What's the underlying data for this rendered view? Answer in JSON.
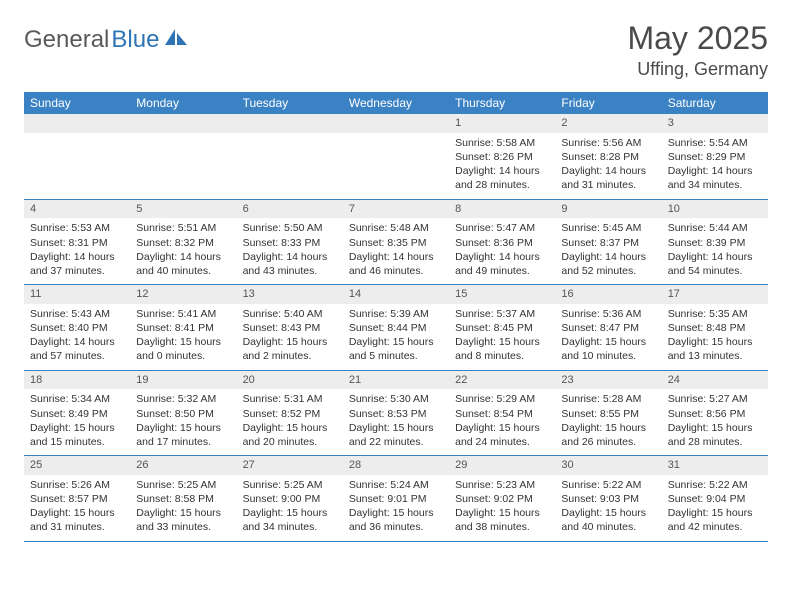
{
  "brand": {
    "part1": "General",
    "part2": "Blue"
  },
  "title": "May 2025",
  "location": "Uffing, Germany",
  "colors": {
    "header_bg": "#3b82c4",
    "daynum_bg": "#ededed",
    "border": "#3b82c4"
  },
  "weekdays": [
    "Sunday",
    "Monday",
    "Tuesday",
    "Wednesday",
    "Thursday",
    "Friday",
    "Saturday"
  ],
  "weeks": [
    [
      null,
      null,
      null,
      null,
      {
        "n": "1",
        "sunrise": "Sunrise: 5:58 AM",
        "sunset": "Sunset: 8:26 PM",
        "daylight": "Daylight: 14 hours and 28 minutes."
      },
      {
        "n": "2",
        "sunrise": "Sunrise: 5:56 AM",
        "sunset": "Sunset: 8:28 PM",
        "daylight": "Daylight: 14 hours and 31 minutes."
      },
      {
        "n": "3",
        "sunrise": "Sunrise: 5:54 AM",
        "sunset": "Sunset: 8:29 PM",
        "daylight": "Daylight: 14 hours and 34 minutes."
      }
    ],
    [
      {
        "n": "4",
        "sunrise": "Sunrise: 5:53 AM",
        "sunset": "Sunset: 8:31 PM",
        "daylight": "Daylight: 14 hours and 37 minutes."
      },
      {
        "n": "5",
        "sunrise": "Sunrise: 5:51 AM",
        "sunset": "Sunset: 8:32 PM",
        "daylight": "Daylight: 14 hours and 40 minutes."
      },
      {
        "n": "6",
        "sunrise": "Sunrise: 5:50 AM",
        "sunset": "Sunset: 8:33 PM",
        "daylight": "Daylight: 14 hours and 43 minutes."
      },
      {
        "n": "7",
        "sunrise": "Sunrise: 5:48 AM",
        "sunset": "Sunset: 8:35 PM",
        "daylight": "Daylight: 14 hours and 46 minutes."
      },
      {
        "n": "8",
        "sunrise": "Sunrise: 5:47 AM",
        "sunset": "Sunset: 8:36 PM",
        "daylight": "Daylight: 14 hours and 49 minutes."
      },
      {
        "n": "9",
        "sunrise": "Sunrise: 5:45 AM",
        "sunset": "Sunset: 8:37 PM",
        "daylight": "Daylight: 14 hours and 52 minutes."
      },
      {
        "n": "10",
        "sunrise": "Sunrise: 5:44 AM",
        "sunset": "Sunset: 8:39 PM",
        "daylight": "Daylight: 14 hours and 54 minutes."
      }
    ],
    [
      {
        "n": "11",
        "sunrise": "Sunrise: 5:43 AM",
        "sunset": "Sunset: 8:40 PM",
        "daylight": "Daylight: 14 hours and 57 minutes."
      },
      {
        "n": "12",
        "sunrise": "Sunrise: 5:41 AM",
        "sunset": "Sunset: 8:41 PM",
        "daylight": "Daylight: 15 hours and 0 minutes."
      },
      {
        "n": "13",
        "sunrise": "Sunrise: 5:40 AM",
        "sunset": "Sunset: 8:43 PM",
        "daylight": "Daylight: 15 hours and 2 minutes."
      },
      {
        "n": "14",
        "sunrise": "Sunrise: 5:39 AM",
        "sunset": "Sunset: 8:44 PM",
        "daylight": "Daylight: 15 hours and 5 minutes."
      },
      {
        "n": "15",
        "sunrise": "Sunrise: 5:37 AM",
        "sunset": "Sunset: 8:45 PM",
        "daylight": "Daylight: 15 hours and 8 minutes."
      },
      {
        "n": "16",
        "sunrise": "Sunrise: 5:36 AM",
        "sunset": "Sunset: 8:47 PM",
        "daylight": "Daylight: 15 hours and 10 minutes."
      },
      {
        "n": "17",
        "sunrise": "Sunrise: 5:35 AM",
        "sunset": "Sunset: 8:48 PM",
        "daylight": "Daylight: 15 hours and 13 minutes."
      }
    ],
    [
      {
        "n": "18",
        "sunrise": "Sunrise: 5:34 AM",
        "sunset": "Sunset: 8:49 PM",
        "daylight": "Daylight: 15 hours and 15 minutes."
      },
      {
        "n": "19",
        "sunrise": "Sunrise: 5:32 AM",
        "sunset": "Sunset: 8:50 PM",
        "daylight": "Daylight: 15 hours and 17 minutes."
      },
      {
        "n": "20",
        "sunrise": "Sunrise: 5:31 AM",
        "sunset": "Sunset: 8:52 PM",
        "daylight": "Daylight: 15 hours and 20 minutes."
      },
      {
        "n": "21",
        "sunrise": "Sunrise: 5:30 AM",
        "sunset": "Sunset: 8:53 PM",
        "daylight": "Daylight: 15 hours and 22 minutes."
      },
      {
        "n": "22",
        "sunrise": "Sunrise: 5:29 AM",
        "sunset": "Sunset: 8:54 PM",
        "daylight": "Daylight: 15 hours and 24 minutes."
      },
      {
        "n": "23",
        "sunrise": "Sunrise: 5:28 AM",
        "sunset": "Sunset: 8:55 PM",
        "daylight": "Daylight: 15 hours and 26 minutes."
      },
      {
        "n": "24",
        "sunrise": "Sunrise: 5:27 AM",
        "sunset": "Sunset: 8:56 PM",
        "daylight": "Daylight: 15 hours and 28 minutes."
      }
    ],
    [
      {
        "n": "25",
        "sunrise": "Sunrise: 5:26 AM",
        "sunset": "Sunset: 8:57 PM",
        "daylight": "Daylight: 15 hours and 31 minutes."
      },
      {
        "n": "26",
        "sunrise": "Sunrise: 5:25 AM",
        "sunset": "Sunset: 8:58 PM",
        "daylight": "Daylight: 15 hours and 33 minutes."
      },
      {
        "n": "27",
        "sunrise": "Sunrise: 5:25 AM",
        "sunset": "Sunset: 9:00 PM",
        "daylight": "Daylight: 15 hours and 34 minutes."
      },
      {
        "n": "28",
        "sunrise": "Sunrise: 5:24 AM",
        "sunset": "Sunset: 9:01 PM",
        "daylight": "Daylight: 15 hours and 36 minutes."
      },
      {
        "n": "29",
        "sunrise": "Sunrise: 5:23 AM",
        "sunset": "Sunset: 9:02 PM",
        "daylight": "Daylight: 15 hours and 38 minutes."
      },
      {
        "n": "30",
        "sunrise": "Sunrise: 5:22 AM",
        "sunset": "Sunset: 9:03 PM",
        "daylight": "Daylight: 15 hours and 40 minutes."
      },
      {
        "n": "31",
        "sunrise": "Sunrise: 5:22 AM",
        "sunset": "Sunset: 9:04 PM",
        "daylight": "Daylight: 15 hours and 42 minutes."
      }
    ]
  ]
}
